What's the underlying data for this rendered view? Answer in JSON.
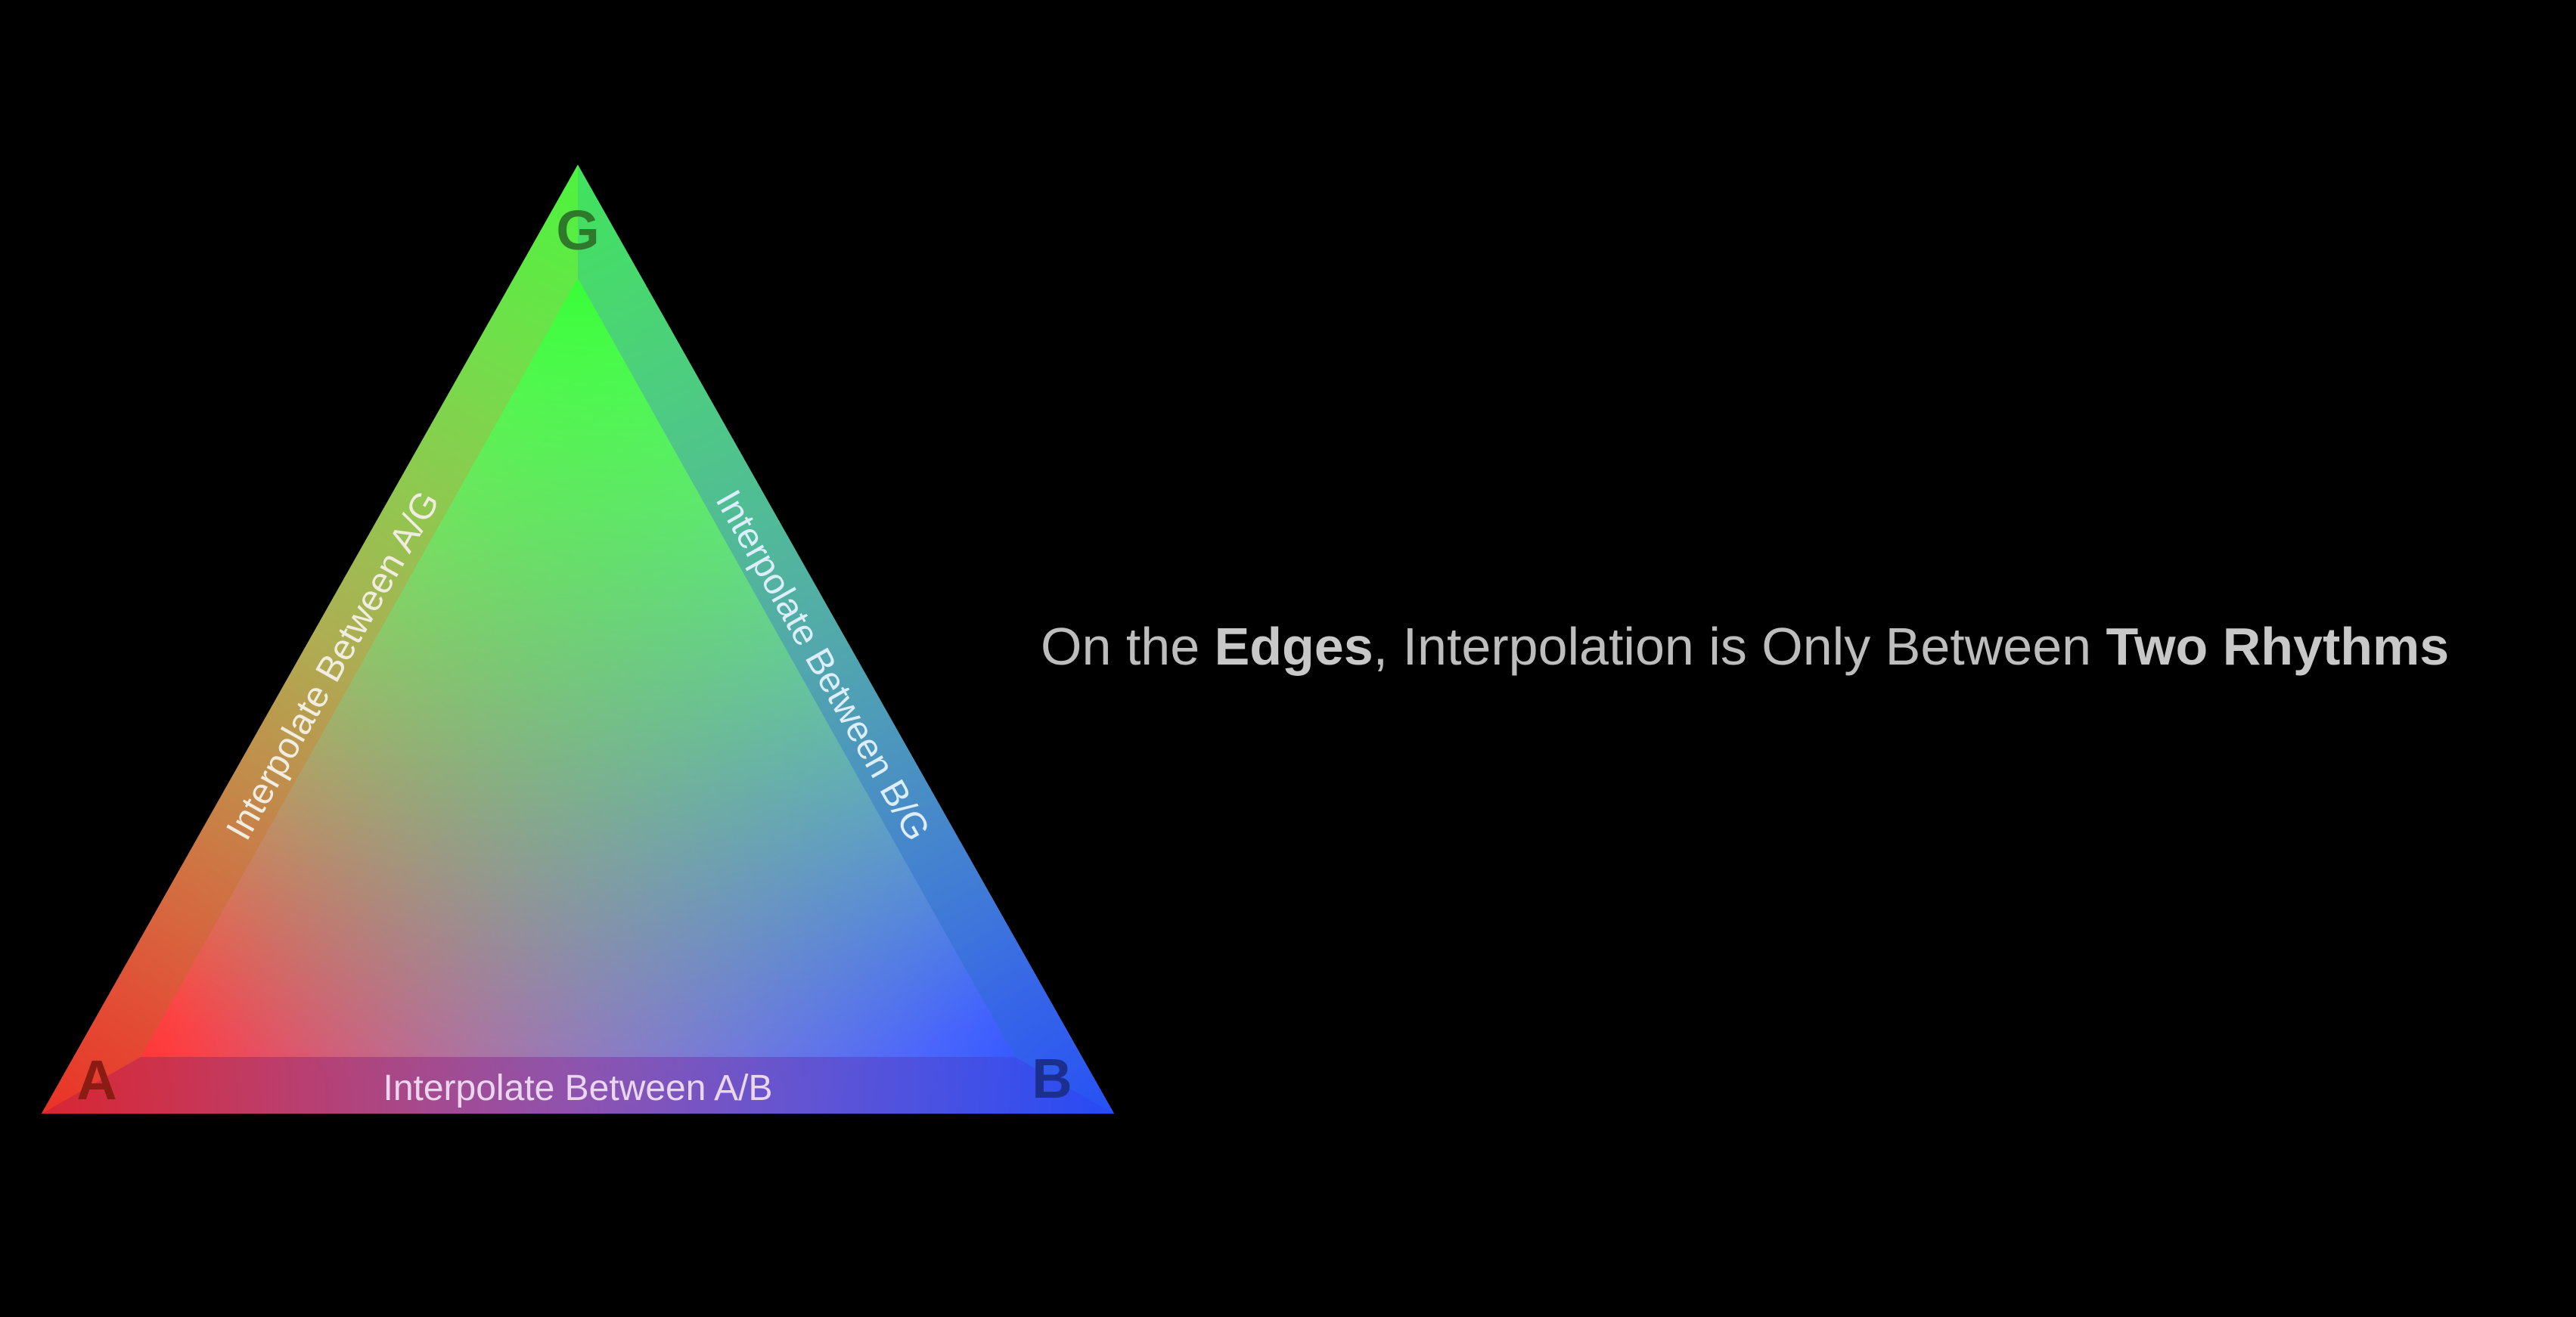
{
  "diagram": {
    "vertices": {
      "a": {
        "label": "A",
        "color": "#ff2a2a",
        "label_color": "#8a1c14"
      },
      "b": {
        "label": "B",
        "color": "#2a55ff",
        "label_color": "#1b2f8f"
      },
      "g": {
        "label": "G",
        "color": "#2bff2b",
        "label_color": "#2f7a2a"
      }
    },
    "edges": {
      "ab": {
        "label": "Interpolate Between A/B"
      },
      "ag": {
        "label": "Interpolate Between A/G"
      },
      "bg": {
        "label": "Interpolate Between B/G"
      }
    }
  },
  "headline": {
    "part1": "On the ",
    "bold1": "Edges",
    "part2": ", Interpolation is Only Between ",
    "bold2": "Two Rhythms"
  }
}
